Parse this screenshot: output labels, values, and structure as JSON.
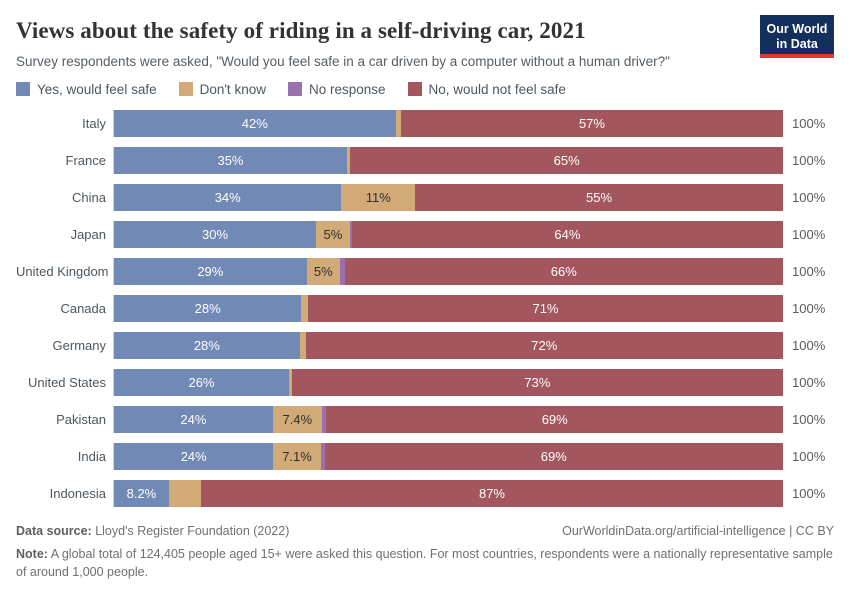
{
  "header": {
    "title": "Views about the safety of riding in a self-driving car, 2021",
    "subtitle": "Survey respondents were asked, \"Would you feel safe in a car driven by a computer without a human driver?\"",
    "logo": {
      "line1": "Our World",
      "line2": "in Data",
      "bg_color": "#12305b",
      "stripe_color": "#dc3a2f"
    }
  },
  "colors": {
    "yes": {
      "fill": "#7089B5",
      "text": "#ffffff"
    },
    "dont_know": {
      "fill": "#D2AA78",
      "text": "#2f2f2f"
    },
    "no_response": {
      "fill": "#9A70AD",
      "text": "#ffffff"
    },
    "no": {
      "fill": "#A4565E",
      "text": "#ffffff"
    }
  },
  "legend": {
    "items": [
      {
        "key": "yes",
        "label": "Yes, would feel safe"
      },
      {
        "key": "dont_know",
        "label": "Don't know"
      },
      {
        "key": "no_response",
        "label": "No response"
      },
      {
        "key": "no",
        "label": "No, would not feel safe"
      }
    ]
  },
  "chart_data": {
    "type": "bar",
    "orientation": "horizontal-stacked",
    "unit": "%",
    "title": "Views about the safety of riding in a self-driving car, 2021",
    "categories": [
      "Italy",
      "France",
      "China",
      "Japan",
      "United Kingdom",
      "Canada",
      "Germany",
      "United States",
      "Pakistan",
      "India",
      "Indonesia"
    ],
    "series": [
      {
        "name": "Yes, would feel safe",
        "values": [
          42,
          35,
          34,
          30,
          29,
          28,
          28,
          26,
          24,
          24,
          8.2
        ]
      },
      {
        "name": "Don't know",
        "values": [
          0.8,
          0.5,
          11,
          5,
          5,
          1.0,
          0.9,
          0.4,
          7.4,
          7.1,
          4.8
        ]
      },
      {
        "name": "No response",
        "values": [
          0,
          0,
          0,
          0.3,
          0.7,
          0,
          0,
          0,
          0.7,
          0.6,
          0
        ]
      },
      {
        "name": "No, would not feel safe",
        "values": [
          57,
          65,
          55,
          64,
          66,
          71,
          72,
          73,
          69,
          69,
          87
        ]
      }
    ],
    "xlim": [
      0,
      100
    ],
    "row_total_label": "100%",
    "legend_position": "top",
    "grid": false
  },
  "rows": [
    {
      "country": "Italy",
      "total": "100%",
      "segments": [
        {
          "key": "yes",
          "value": 42,
          "label": "42%"
        },
        {
          "key": "dont_know",
          "value": 0.8,
          "label": ""
        },
        {
          "key": "no",
          "value": 57,
          "label": "57%"
        }
      ]
    },
    {
      "country": "France",
      "total": "100%",
      "segments": [
        {
          "key": "yes",
          "value": 35,
          "label": "35%"
        },
        {
          "key": "dont_know",
          "value": 0.5,
          "label": ""
        },
        {
          "key": "no",
          "value": 65,
          "label": "65%"
        }
      ]
    },
    {
      "country": "China",
      "total": "100%",
      "segments": [
        {
          "key": "yes",
          "value": 34,
          "label": "34%"
        },
        {
          "key": "dont_know",
          "value": 11,
          "label": "11%"
        },
        {
          "key": "no",
          "value": 55,
          "label": "55%"
        }
      ]
    },
    {
      "country": "Japan",
      "total": "100%",
      "segments": [
        {
          "key": "yes",
          "value": 30,
          "label": "30%"
        },
        {
          "key": "dont_know",
          "value": 5,
          "label": "5%"
        },
        {
          "key": "no_response",
          "value": 0.3,
          "label": ""
        },
        {
          "key": "no",
          "value": 64,
          "label": "64%"
        }
      ]
    },
    {
      "country": "United Kingdom",
      "total": "100%",
      "segments": [
        {
          "key": "yes",
          "value": 29,
          "label": "29%"
        },
        {
          "key": "dont_know",
          "value": 5,
          "label": "5%"
        },
        {
          "key": "no_response",
          "value": 0.7,
          "label": ""
        },
        {
          "key": "no",
          "value": 66,
          "label": "66%"
        }
      ]
    },
    {
      "country": "Canada",
      "total": "100%",
      "segments": [
        {
          "key": "yes",
          "value": 28,
          "label": "28%"
        },
        {
          "key": "dont_know",
          "value": 1.0,
          "label": ""
        },
        {
          "key": "no",
          "value": 71,
          "label": "71%"
        }
      ]
    },
    {
      "country": "Germany",
      "total": "100%",
      "segments": [
        {
          "key": "yes",
          "value": 28,
          "label": "28%"
        },
        {
          "key": "dont_know",
          "value": 0.9,
          "label": ""
        },
        {
          "key": "no",
          "value": 72,
          "label": "72%"
        }
      ]
    },
    {
      "country": "United States",
      "total": "100%",
      "segments": [
        {
          "key": "yes",
          "value": 26,
          "label": "26%"
        },
        {
          "key": "dont_know",
          "value": 0.4,
          "label": ""
        },
        {
          "key": "no",
          "value": 73,
          "label": "73%"
        }
      ]
    },
    {
      "country": "Pakistan",
      "total": "100%",
      "segments": [
        {
          "key": "yes",
          "value": 24,
          "label": "24%"
        },
        {
          "key": "dont_know",
          "value": 7.4,
          "label": "7.4%"
        },
        {
          "key": "no_response",
          "value": 0.7,
          "label": ""
        },
        {
          "key": "no",
          "value": 69,
          "label": "69%"
        }
      ]
    },
    {
      "country": "India",
      "total": "100%",
      "segments": [
        {
          "key": "yes",
          "value": 24,
          "label": "24%"
        },
        {
          "key": "dont_know",
          "value": 7.1,
          "label": "7.1%"
        },
        {
          "key": "no_response",
          "value": 0.6,
          "label": ""
        },
        {
          "key": "no",
          "value": 69,
          "label": "69%"
        }
      ]
    },
    {
      "country": "Indonesia",
      "total": "100%",
      "segments": [
        {
          "key": "yes",
          "value": 8.2,
          "label": "8.2%"
        },
        {
          "key": "dont_know",
          "value": 4.8,
          "label": ""
        },
        {
          "key": "no",
          "value": 87,
          "label": "87%"
        }
      ]
    }
  ],
  "footer": {
    "data_source_label": "Data source:",
    "data_source_text": " Lloyd's Register Foundation (2022)",
    "link": "OurWorldinData.org/artificial-intelligence | CC BY",
    "note_label": "Note:",
    "note_text": " A global total of 124,405 people aged 15+ were asked this question. For most countries, respondents were a nationally representative sample of around 1,000 people."
  }
}
